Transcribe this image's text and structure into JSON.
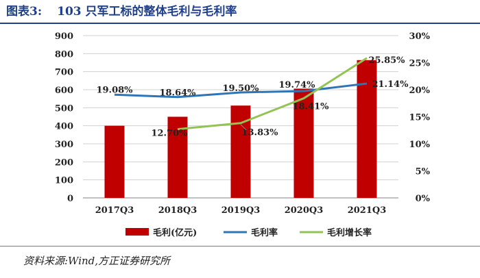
{
  "figure": {
    "label": "图表3:",
    "title": "103 只军工标的整体毛利与毛利率"
  },
  "source": "资料来源:Wind,方正证券研究所",
  "colors": {
    "bar": "#c00000",
    "margin_line": "#2e75b6",
    "growth_line": "#92c353",
    "title": "#1f3f8a",
    "grid": "#d0d0d0"
  },
  "chart_data": {
    "type": "bar",
    "categories": [
      "2017Q3",
      "2018Q3",
      "2019Q3",
      "2020Q3",
      "2021Q3"
    ],
    "series": [
      {
        "name": "毛利(亿元)",
        "kind": "bar",
        "axis": "left",
        "values": [
          400,
          450,
          512,
          606,
          764
        ]
      },
      {
        "name": "毛利率",
        "kind": "line",
        "axis": "right",
        "values": [
          19.08,
          18.64,
          19.5,
          19.74,
          21.14
        ],
        "labels": [
          "19.08%",
          "18.64%",
          "19.50%",
          "19.74%",
          "21.14%"
        ]
      },
      {
        "name": "毛利增长率",
        "kind": "line",
        "axis": "right",
        "values": [
          null,
          12.7,
          13.83,
          18.41,
          25.85
        ],
        "labels": [
          "",
          "12.70%",
          "13.83%",
          "18.41%",
          "25.85%"
        ]
      }
    ],
    "y_left": {
      "min": 0,
      "max": 900,
      "ticks": [
        "0",
        "100",
        "200",
        "300",
        "400",
        "500",
        "600",
        "700",
        "800",
        "900"
      ]
    },
    "y_right": {
      "min": 0,
      "max": 30,
      "ticks": [
        "0%",
        "5%",
        "10%",
        "15%",
        "20%",
        "25%",
        "30%"
      ]
    },
    "grid": true,
    "legend_position": "bottom"
  }
}
